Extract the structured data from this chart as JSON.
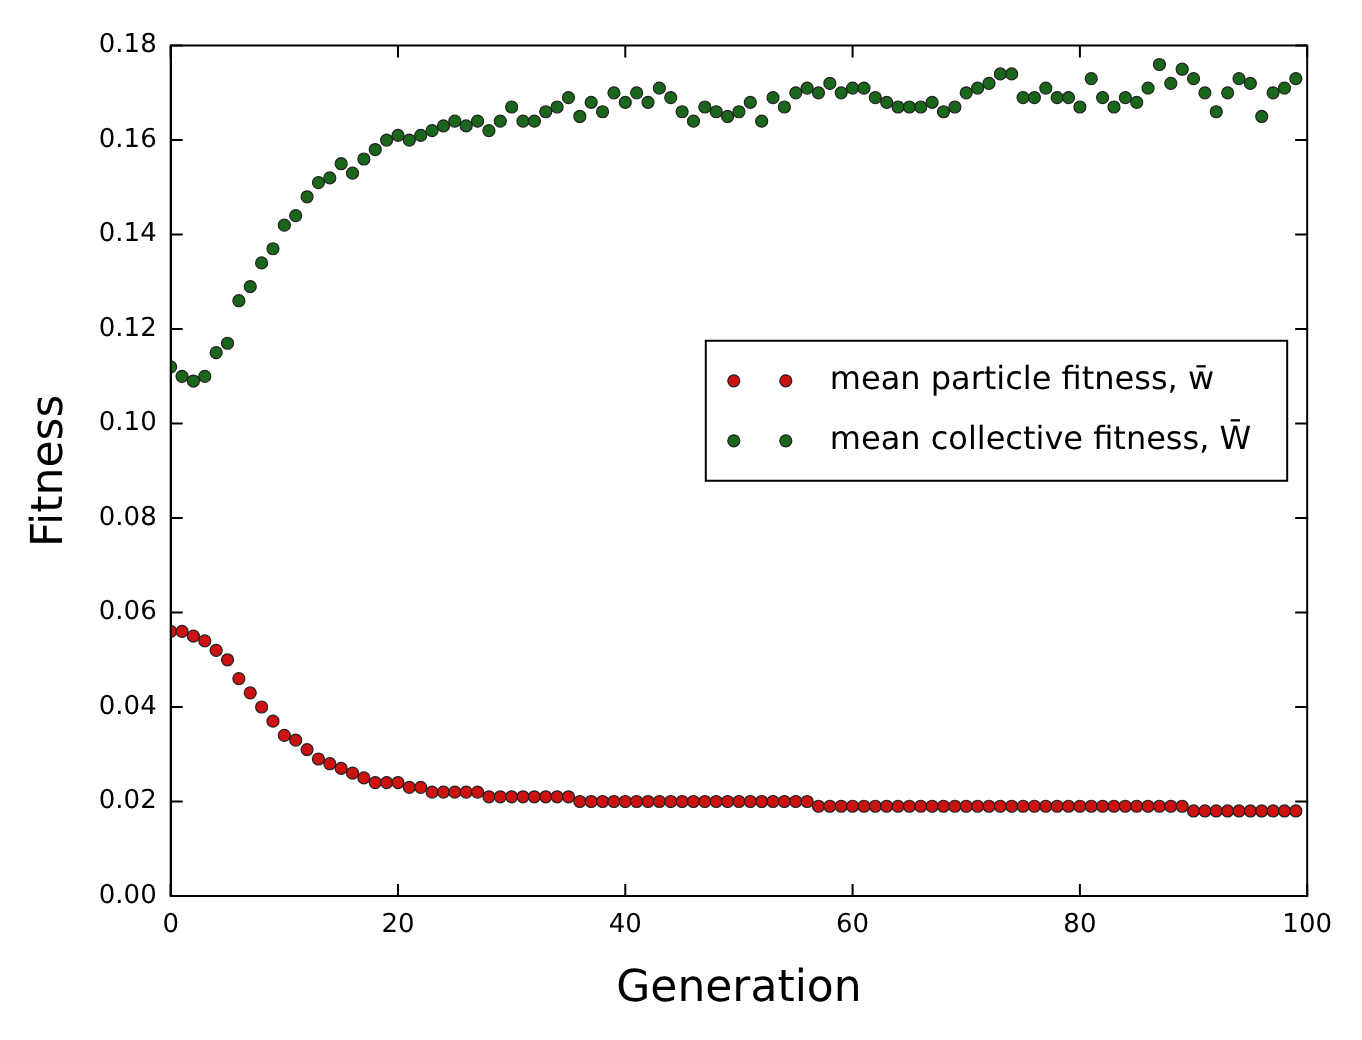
{
  "chart_data": {
    "type": "scatter",
    "xlabel": "Generation",
    "ylabel": "Fitness",
    "x": [
      0,
      1,
      2,
      3,
      4,
      5,
      6,
      7,
      8,
      9,
      10,
      11,
      12,
      13,
      14,
      15,
      16,
      17,
      18,
      19,
      20,
      21,
      22,
      23,
      24,
      25,
      26,
      27,
      28,
      29,
      30,
      31,
      32,
      33,
      34,
      35,
      36,
      37,
      38,
      39,
      40,
      41,
      42,
      43,
      44,
      45,
      46,
      47,
      48,
      49,
      50,
      51,
      52,
      53,
      54,
      55,
      56,
      57,
      58,
      59,
      60,
      61,
      62,
      63,
      64,
      65,
      66,
      67,
      68,
      69,
      70,
      71,
      72,
      73,
      74,
      75,
      76,
      77,
      78,
      79,
      80,
      81,
      82,
      83,
      84,
      85,
      86,
      87,
      88,
      89,
      90,
      91,
      92,
      93,
      94,
      95,
      96,
      97,
      98,
      99
    ],
    "series": [
      {
        "name": "mean particle fitness, w̄",
        "color": "#cc1111",
        "values": [
          0.056,
          0.056,
          0.055,
          0.054,
          0.052,
          0.05,
          0.046,
          0.043,
          0.04,
          0.037,
          0.034,
          0.033,
          0.031,
          0.029,
          0.028,
          0.027,
          0.026,
          0.025,
          0.024,
          0.024,
          0.024,
          0.023,
          0.023,
          0.022,
          0.022,
          0.022,
          0.022,
          0.022,
          0.021,
          0.021,
          0.021,
          0.021,
          0.021,
          0.021,
          0.021,
          0.021,
          0.02,
          0.02,
          0.02,
          0.02,
          0.02,
          0.02,
          0.02,
          0.02,
          0.02,
          0.02,
          0.02,
          0.02,
          0.02,
          0.02,
          0.02,
          0.02,
          0.02,
          0.02,
          0.02,
          0.02,
          0.02,
          0.019,
          0.019,
          0.019,
          0.019,
          0.019,
          0.019,
          0.019,
          0.019,
          0.019,
          0.019,
          0.019,
          0.019,
          0.019,
          0.019,
          0.019,
          0.019,
          0.019,
          0.019,
          0.019,
          0.019,
          0.019,
          0.019,
          0.019,
          0.019,
          0.019,
          0.019,
          0.019,
          0.019,
          0.019,
          0.019,
          0.019,
          0.019,
          0.019,
          0.018,
          0.018,
          0.018,
          0.018,
          0.018,
          0.018,
          0.018,
          0.018,
          0.018,
          0.018
        ]
      },
      {
        "name": "mean collective fitness, W̄",
        "color": "#1a661a",
        "values": [
          0.112,
          0.11,
          0.109,
          0.11,
          0.115,
          0.117,
          0.126,
          0.129,
          0.134,
          0.137,
          0.142,
          0.144,
          0.148,
          0.151,
          0.152,
          0.155,
          0.153,
          0.156,
          0.158,
          0.16,
          0.161,
          0.16,
          0.161,
          0.162,
          0.163,
          0.164,
          0.163,
          0.164,
          0.162,
          0.164,
          0.167,
          0.164,
          0.164,
          0.166,
          0.167,
          0.169,
          0.165,
          0.168,
          0.166,
          0.17,
          0.168,
          0.17,
          0.168,
          0.171,
          0.169,
          0.166,
          0.164,
          0.167,
          0.166,
          0.165,
          0.166,
          0.168,
          0.164,
          0.169,
          0.167,
          0.17,
          0.171,
          0.17,
          0.172,
          0.17,
          0.171,
          0.171,
          0.169,
          0.168,
          0.167,
          0.167,
          0.167,
          0.168,
          0.166,
          0.167,
          0.17,
          0.171,
          0.172,
          0.174,
          0.174,
          0.169,
          0.169,
          0.171,
          0.169,
          0.169,
          0.167,
          0.173,
          0.169,
          0.167,
          0.169,
          0.168,
          0.171,
          0.176,
          0.172,
          0.175,
          0.173,
          0.17,
          0.166,
          0.17,
          0.173,
          0.172,
          0.165,
          0.17,
          0.171,
          0.173
        ]
      }
    ],
    "xlim": [
      0,
      100
    ],
    "xticks": [
      0,
      20,
      40,
      60,
      80,
      100
    ],
    "ylim": [
      0,
      0.18
    ],
    "yticks": [
      {
        "value": 0,
        "label": "0.00"
      },
      {
        "value": 0.02,
        "label": "0.02"
      },
      {
        "value": 0.04,
        "label": "0.04"
      },
      {
        "value": 0.06,
        "label": "0.06"
      },
      {
        "value": 0.08,
        "label": "0.08"
      },
      {
        "value": 0.1,
        "label": "0.10"
      },
      {
        "value": 0.12,
        "label": "0.12"
      },
      {
        "value": 0.14,
        "label": "0.14"
      },
      {
        "value": 0.16,
        "label": "0.16"
      },
      {
        "value": 0.18,
        "label": "0.18"
      }
    ],
    "grid": false,
    "legend": "right",
    "marker": "circle"
  }
}
